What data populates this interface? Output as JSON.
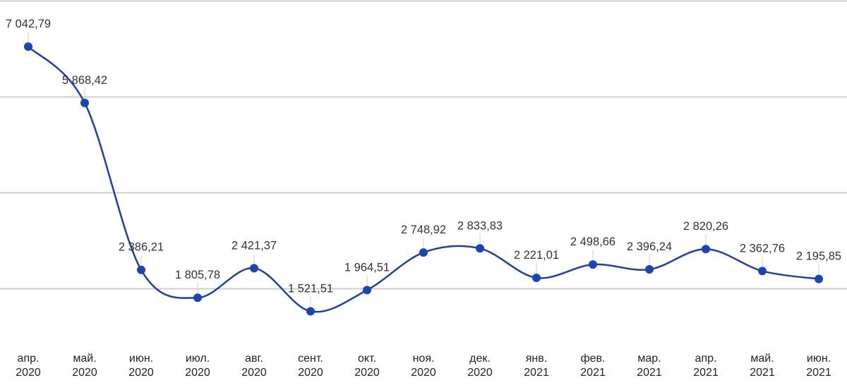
{
  "chart_data": {
    "type": "line",
    "title": "",
    "xlabel": "",
    "ylabel": "",
    "categories": [
      [
        "апр.",
        "2020"
      ],
      [
        "май.",
        "2020"
      ],
      [
        "июн.",
        "2020"
      ],
      [
        "июл.",
        "2020"
      ],
      [
        "авг.",
        "2020"
      ],
      [
        "сент.",
        "2020"
      ],
      [
        "окт.",
        "2020"
      ],
      [
        "ноя.",
        "2020"
      ],
      [
        "дек.",
        "2020"
      ],
      [
        "янв.",
        "2021"
      ],
      [
        "фев.",
        "2021"
      ],
      [
        "мар.",
        "2021"
      ],
      [
        "апр.",
        "2021"
      ],
      [
        "май.",
        "2021"
      ],
      [
        "июн.",
        "2021"
      ]
    ],
    "series": [
      {
        "values": [
          7042.79,
          5868.42,
          2386.21,
          1805.78,
          2421.37,
          1521.51,
          1964.51,
          2748.92,
          2833.83,
          2221.01,
          2498.66,
          2396.24,
          2820.26,
          2362.76,
          2195.85
        ],
        "labels": [
          "7 042,79",
          "5 868,42",
          "2 386,21",
          "1 805,78",
          "2 421,37",
          "1 521,51",
          "1 964,51",
          "2 748,92",
          "2 833,83",
          "2 221,01",
          "2 498,66",
          "2 396,24",
          "2 820,26",
          "2 362,76",
          "2 195,85"
        ]
      }
    ],
    "ylim": [
      0,
      8000
    ],
    "yticks": [
      2000,
      4000,
      6000,
      8000
    ],
    "y_tick_labels_shown": false,
    "grid": true,
    "line_color": "#1f3fa4",
    "point_color": "#1b45b5",
    "smooth": true
  }
}
